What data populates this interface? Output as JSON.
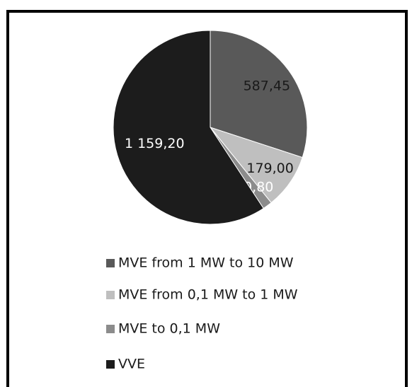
{
  "chart_data": {
    "type": "pie",
    "categories": [
      "MVE from 1 MW to 10 MW",
      "MVE from 0,1 MW to 1 MW",
      "MVE to 0,1 MW",
      "VVE"
    ],
    "values": [
      587.45,
      179.0,
      30.8,
      1159.2
    ],
    "value_labels": [
      "587,45",
      "179,00",
      "30,80",
      "1 159,20"
    ],
    "colors": [
      "#595959",
      "#bfbfbf",
      "#8c8c8c",
      "#1c1c1c"
    ],
    "legend": "bottom"
  }
}
